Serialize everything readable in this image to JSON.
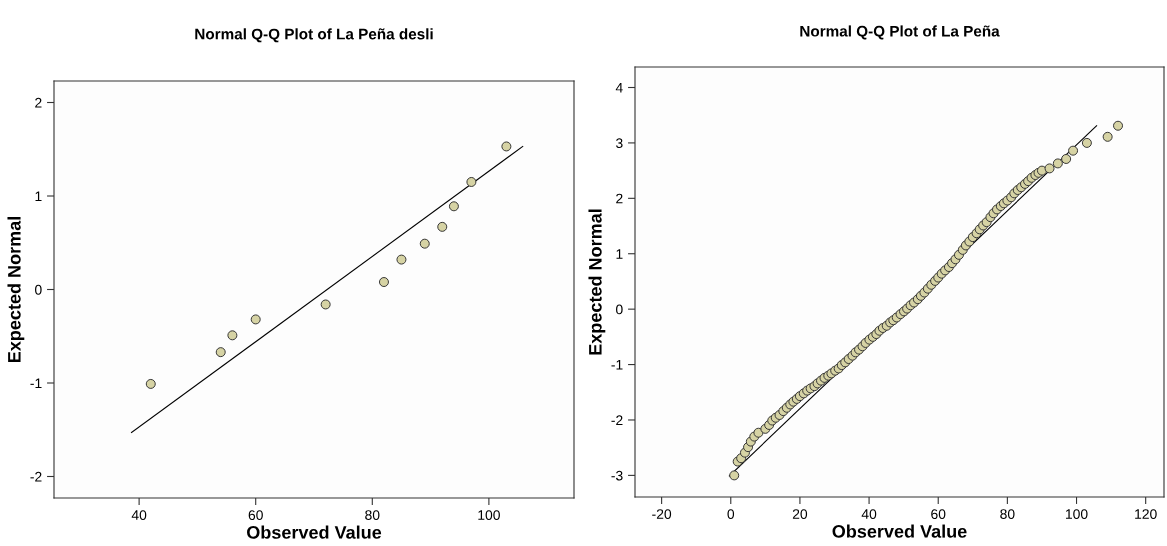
{
  "chart_data": [
    {
      "type": "scatter",
      "title": "Normal Q-Q Plot of La Peña desli",
      "xlabel": "Observed Value",
      "ylabel": "Expected Normal",
      "xlim": [
        25.4,
        114.6
      ],
      "ylim": [
        -2.23,
        2.23
      ],
      "xticks": [
        40,
        60,
        80,
        100
      ],
      "yticks": [
        -2,
        -1,
        0,
        1,
        2
      ],
      "grid": false,
      "series": [
        {
          "marker": "circle",
          "color": "#d6d3a4",
          "x": [
            42,
            54,
            56,
            60,
            72,
            82,
            85,
            89,
            92,
            94,
            97,
            103
          ],
          "values": [
            -1.01,
            -0.67,
            -0.49,
            -0.32,
            -0.16,
            0.08,
            0.32,
            0.49,
            0.67,
            0.89,
            1.15,
            1.53
          ]
        },
        {
          "type": "line",
          "color": "#000000",
          "x": [
            38.7,
            105.8
          ],
          "values": [
            -1.53,
            1.53
          ]
        }
      ]
    },
    {
      "type": "scatter",
      "title": "Normal Q-Q Plot of La Peña",
      "xlabel": "Observed Value",
      "ylabel": "Expected Normal",
      "xlim": [
        -27.7,
        125.3
      ],
      "ylim": [
        -3.39,
        4.37
      ],
      "xticks": [
        -20,
        0,
        20,
        40,
        60,
        80,
        100,
        120
      ],
      "yticks": [
        -3,
        -2,
        -1,
        0,
        1,
        2,
        3,
        4
      ],
      "grid": false,
      "series": [
        {
          "marker": "circle",
          "color": "#d6d3a4",
          "x": [
            1.0,
            2.0,
            3.0,
            4.1,
            5.0,
            5.8,
            6.8,
            8.0,
            10.0,
            11.1,
            12,
            13,
            14.1,
            15.2,
            16.2,
            17.2,
            18.1,
            19.1,
            20,
            21.1,
            22.1,
            23.1,
            24.2,
            25.1,
            26.1,
            27.1,
            28.2,
            29.1,
            30.2,
            31.2,
            32.1,
            33.1,
            34.1,
            35.2,
            36.1,
            37.1,
            38.1,
            39,
            40.1,
            41.1,
            42.1,
            43,
            44,
            45.1,
            46.1,
            47,
            48,
            49.1,
            50.1,
            51,
            52,
            53,
            54.1,
            55,
            56,
            57,
            58,
            59.1,
            60,
            61,
            62,
            63.1,
            64,
            65,
            66,
            67.1,
            68,
            69,
            70,
            71.1,
            72,
            73,
            74,
            75.1,
            76,
            77,
            78.1,
            79,
            80,
            81.1,
            82,
            83,
            84,
            85.1,
            86,
            87,
            88.1,
            89,
            90,
            92.2,
            94.6,
            97,
            99,
            103,
            109,
            112
          ],
          "values": [
            -3.0,
            -2.75,
            -2.69,
            -2.59,
            -2.49,
            -2.39,
            -2.3,
            -2.23,
            -2.16,
            -2.09,
            -2.01,
            -1.96,
            -1.91,
            -1.84,
            -1.78,
            -1.72,
            -1.67,
            -1.62,
            -1.57,
            -1.52,
            -1.47,
            -1.43,
            -1.39,
            -1.34,
            -1.29,
            -1.24,
            -1.2,
            -1.16,
            -1.11,
            -1.07,
            -1.01,
            -0.96,
            -0.9,
            -0.84,
            -0.78,
            -0.73,
            -0.67,
            -0.61,
            -0.55,
            -0.5,
            -0.45,
            -0.39,
            -0.34,
            -0.3,
            -0.24,
            -0.2,
            -0.15,
            -0.09,
            -0.04,
            0.01,
            0.07,
            0.12,
            0.18,
            0.24,
            0.3,
            0.37,
            0.44,
            0.51,
            0.57,
            0.64,
            0.7,
            0.76,
            0.83,
            0.9,
            0.98,
            1.07,
            1.15,
            1.22,
            1.3,
            1.37,
            1.44,
            1.51,
            1.57,
            1.66,
            1.73,
            1.8,
            1.86,
            1.91,
            1.96,
            2.02,
            2.09,
            2.15,
            2.2,
            2.26,
            2.31,
            2.37,
            2.42,
            2.46,
            2.5,
            2.54,
            2.63,
            2.71,
            2.86,
            3.0,
            3.11,
            3.31
          ]
        },
        {
          "type": "line",
          "color": "#000000",
          "x": [
            -0.4,
            105.8
          ],
          "values": [
            -3.01,
            3.31
          ]
        }
      ]
    }
  ]
}
